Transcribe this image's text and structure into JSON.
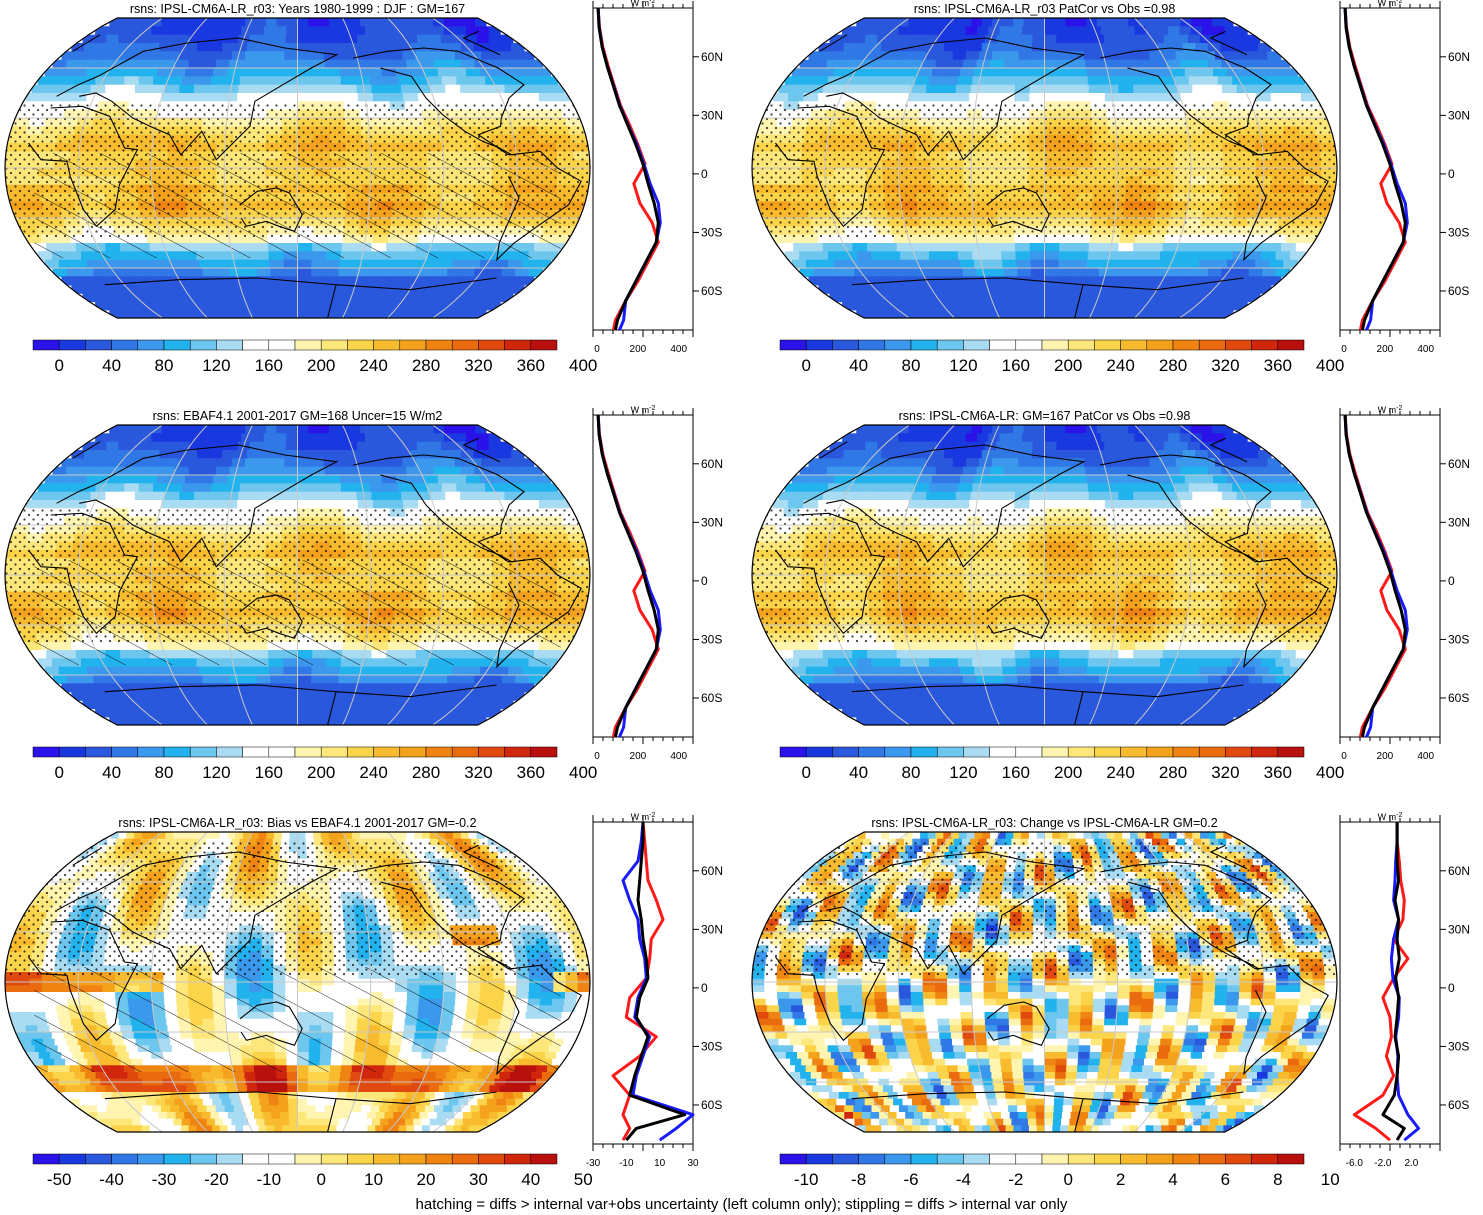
{
  "footer": "hatching = diffs > internal var+obs uncertainty (left column only); stippling = diffs > internal var only",
  "colors": {
    "abs_palette": [
      "#2a12e8",
      "#1a38e0",
      "#2a58dc",
      "#2f78e6",
      "#3b98ec",
      "#22b3ee",
      "#6cc6ee",
      "#a9dcf3",
      "#ffffff",
      "#ffffff",
      "#fff4b0",
      "#fde67a",
      "#fbd44a",
      "#f8bb2e",
      "#f4a21c",
      "#ef8412",
      "#ea6a0e",
      "#e04a0e",
      "#d1260e",
      "#b8100c"
    ],
    "diff_palette": [
      "#2a12e8",
      "#1a38e0",
      "#2a58dc",
      "#2f78e6",
      "#3b98ec",
      "#22b3ee",
      "#6cc6ee",
      "#a9dcf3",
      "#ffffff",
      "#ffffff",
      "#fff4b0",
      "#fde67a",
      "#fbd44a",
      "#f8bb2e",
      "#f4a21c",
      "#ef8412",
      "#ea6a0e",
      "#e04a0e",
      "#d1260e",
      "#b8100c"
    ],
    "land_outline": "#000000",
    "graticule": "#c8c8c8",
    "profile_model": "#000000",
    "profile_obs": "#ff1a1a",
    "profile_other": "#1a1aff"
  },
  "chart_data": [
    {
      "type": "heatmap",
      "panel": "top-left",
      "title": "rsns: IPSL-CM6A-LR_r03: Years 1980-1999 : DJF : GM=167",
      "colorbar": {
        "ticks": [
          "0",
          "40",
          "80",
          "120",
          "160",
          "200",
          "240",
          "280",
          "320",
          "360",
          "400"
        ],
        "range": [
          -20,
          420
        ]
      },
      "field": "abs",
      "stipple": true,
      "hatch": true,
      "profile": {
        "units": "W m",
        "units_sup": "-2",
        "xticks": [
          "0",
          "200",
          "400"
        ],
        "xtick_vals": [
          0,
          200,
          400
        ],
        "xlim": [
          -20,
          470
        ],
        "ylabels": [
          "60N",
          "30N",
          "0",
          "30S",
          "60S"
        ],
        "ylim": [
          -80,
          85
        ],
        "lat": [
          85,
          75,
          65,
          55,
          45,
          35,
          25,
          15,
          5,
          -5,
          -15,
          -25,
          -35,
          -45,
          -55,
          -65,
          -75,
          -80
        ],
        "black": [
          5,
          10,
          25,
          50,
          80,
          110,
          150,
          190,
          225,
          250,
          280,
          300,
          290,
          240,
          190,
          140,
          100,
          90
        ],
        "red": [
          5,
          12,
          28,
          55,
          85,
          115,
          160,
          200,
          235,
          180,
          210,
          270,
          300,
          250,
          200,
          140,
          90,
          80
        ],
        "blue": [
          5,
          10,
          25,
          50,
          82,
          112,
          152,
          195,
          230,
          260,
          300,
          310,
          290,
          240,
          190,
          140,
          130,
          110
        ]
      }
    },
    {
      "type": "heatmap",
      "panel": "top-right",
      "title": "rsns: IPSL-CM6A-LR_r03 PatCor vs Obs =0.98",
      "colorbar": {
        "ticks": [
          "0",
          "40",
          "80",
          "120",
          "160",
          "200",
          "240",
          "280",
          "320",
          "360",
          "400"
        ],
        "range": [
          -20,
          420
        ]
      },
      "field": "abs",
      "stipple": true,
      "hatch": false,
      "profile": {
        "units": "W m",
        "units_sup": "-2",
        "xticks": [
          "0",
          "200",
          "400"
        ],
        "xtick_vals": [
          0,
          200,
          400
        ],
        "xlim": [
          -20,
          470
        ],
        "ylabels": [
          "60N",
          "30N",
          "0",
          "30S",
          "60S"
        ],
        "ylim": [
          -80,
          85
        ],
        "lat": [
          85,
          75,
          65,
          55,
          45,
          35,
          25,
          15,
          5,
          -5,
          -15,
          -25,
          -35,
          -45,
          -55,
          -65,
          -75,
          -80
        ],
        "black": [
          5,
          10,
          25,
          50,
          80,
          110,
          150,
          190,
          225,
          250,
          280,
          300,
          290,
          240,
          190,
          140,
          100,
          90
        ],
        "red": [
          5,
          12,
          28,
          55,
          85,
          115,
          160,
          200,
          235,
          180,
          210,
          270,
          300,
          250,
          200,
          140,
          90,
          80
        ],
        "blue": [
          5,
          10,
          25,
          50,
          82,
          112,
          152,
          195,
          230,
          260,
          300,
          310,
          290,
          240,
          190,
          140,
          130,
          110
        ]
      }
    },
    {
      "type": "heatmap",
      "panel": "middle-left",
      "title": "rsns: EBAF4.1 2001-2017 GM=168 Uncer=15 W/m2",
      "colorbar": {
        "ticks": [
          "0",
          "40",
          "80",
          "120",
          "160",
          "200",
          "240",
          "280",
          "320",
          "360",
          "400"
        ],
        "range": [
          -20,
          420
        ]
      },
      "field": "abs",
      "stipple": true,
      "hatch": true,
      "profile": {
        "units": "W m",
        "units_sup": "-2",
        "xticks": [
          "0",
          "200",
          "400"
        ],
        "xtick_vals": [
          0,
          200,
          400
        ],
        "xlim": [
          -20,
          470
        ],
        "ylabels": [
          "60N",
          "30N",
          "0",
          "30S",
          "60S"
        ],
        "ylim": [
          -80,
          85
        ],
        "lat": [
          85,
          75,
          65,
          55,
          45,
          35,
          25,
          15,
          5,
          -5,
          -15,
          -25,
          -35,
          -45,
          -55,
          -65,
          -75,
          -80
        ],
        "black": [
          5,
          10,
          25,
          50,
          80,
          110,
          150,
          190,
          225,
          250,
          280,
          300,
          290,
          240,
          190,
          140,
          100,
          90
        ],
        "red": [
          5,
          12,
          28,
          55,
          85,
          115,
          160,
          200,
          235,
          180,
          210,
          270,
          300,
          250,
          200,
          140,
          90,
          80
        ],
        "blue": [
          5,
          10,
          25,
          50,
          82,
          112,
          152,
          195,
          230,
          260,
          300,
          310,
          290,
          240,
          190,
          140,
          130,
          110
        ]
      }
    },
    {
      "type": "heatmap",
      "panel": "middle-right",
      "title": "rsns: IPSL-CM6A-LR: GM=167 PatCor vs Obs =0.98",
      "colorbar": {
        "ticks": [
          "0",
          "40",
          "80",
          "120",
          "160",
          "200",
          "240",
          "280",
          "320",
          "360",
          "400"
        ],
        "range": [
          -20,
          420
        ]
      },
      "field": "abs",
      "stipple": true,
      "hatch": false,
      "profile": {
        "units": "W m",
        "units_sup": "-2",
        "xticks": [
          "0",
          "200",
          "400"
        ],
        "xtick_vals": [
          0,
          200,
          400
        ],
        "xlim": [
          -20,
          470
        ],
        "ylabels": [
          "60N",
          "30N",
          "0",
          "30S",
          "60S"
        ],
        "ylim": [
          -80,
          85
        ],
        "lat": [
          85,
          75,
          65,
          55,
          45,
          35,
          25,
          15,
          5,
          -5,
          -15,
          -25,
          -35,
          -45,
          -55,
          -65,
          -75,
          -80
        ],
        "black": [
          5,
          10,
          25,
          50,
          80,
          110,
          150,
          190,
          225,
          250,
          280,
          300,
          290,
          240,
          190,
          140,
          100,
          90
        ],
        "red": [
          5,
          12,
          28,
          55,
          85,
          115,
          160,
          200,
          235,
          180,
          210,
          270,
          300,
          250,
          200,
          140,
          90,
          80
        ],
        "blue": [
          5,
          10,
          25,
          50,
          82,
          112,
          152,
          195,
          230,
          260,
          300,
          310,
          290,
          240,
          190,
          140,
          130,
          110
        ]
      }
    },
    {
      "type": "heatmap",
      "panel": "bottom-left",
      "title": "rsns: IPSL-CM6A-LR_r03: Bias vs EBAF4.1 2001-2017 GM=-0.2",
      "colorbar": {
        "ticks": [
          "-50",
          "-40",
          "-30",
          "-20",
          "-10",
          "0",
          "10",
          "20",
          "30",
          "40",
          "50"
        ],
        "range": [
          -55,
          55
        ]
      },
      "field": "diff",
      "stipple": true,
      "hatch": true,
      "profile": {
        "units": "W m",
        "units_sup": "-2",
        "xticks": [
          "-30",
          "-10",
          "10",
          "30"
        ],
        "xtick_vals": [
          -30,
          -10,
          10,
          30
        ],
        "xlim": [
          -30,
          30
        ],
        "ylabels": [
          "60N",
          "30N",
          "0",
          "30S",
          "60S"
        ],
        "ylim": [
          -80,
          85
        ],
        "lat": [
          85,
          75,
          65,
          55,
          45,
          35,
          25,
          15,
          5,
          -5,
          -15,
          -25,
          -35,
          -45,
          -55,
          -65,
          -72,
          -78
        ],
        "black": [
          0,
          0,
          -1,
          -2,
          -3,
          -1,
          0,
          2,
          3,
          -2,
          -4,
          3,
          -1,
          -5,
          -8,
          25,
          -4,
          -10
        ],
        "red": [
          0,
          1,
          2,
          3,
          8,
          12,
          5,
          4,
          2,
          -8,
          -10,
          8,
          -2,
          -18,
          -8,
          -12,
          -8,
          -12
        ],
        "blue": [
          0,
          -1,
          -3,
          -12,
          -8,
          -3,
          -2,
          1,
          2,
          -3,
          -5,
          4,
          0,
          -4,
          -6,
          30,
          20,
          10
        ]
      }
    },
    {
      "type": "heatmap",
      "panel": "bottom-right",
      "title": "rsns: IPSL-CM6A-LR_r03: Change vs IPSL-CM6A-LR GM=0.2",
      "colorbar": {
        "ticks": [
          "-10",
          "-8",
          "-6",
          "-4",
          "-2",
          "0",
          "2",
          "4",
          "6",
          "8",
          "10"
        ],
        "range": [
          -11,
          11
        ]
      },
      "field": "diff",
      "stipple": true,
      "hatch": false,
      "profile": {
        "units": "W m",
        "units_sup": "-2",
        "xticks": [
          "-6.0",
          "-2.0",
          "2.0"
        ],
        "xtick_vals": [
          -6,
          -2,
          2
        ],
        "xlim": [
          -8,
          6
        ],
        "ylabels": [
          "60N",
          "30N",
          "0",
          "30S",
          "60S"
        ],
        "ylim": [
          -80,
          85
        ],
        "lat": [
          85,
          75,
          65,
          55,
          45,
          35,
          25,
          15,
          5,
          -5,
          -15,
          -25,
          -35,
          -45,
          -55,
          -65,
          -72,
          -78
        ],
        "black": [
          0,
          0,
          0,
          0.2,
          -0.3,
          0.2,
          0,
          0.3,
          -0.2,
          0.2,
          0,
          -0.3,
          0.2,
          0,
          -0.4,
          -2,
          1,
          0
        ],
        "red": [
          0,
          0,
          0.3,
          0.5,
          1,
          0.8,
          -0.5,
          1.5,
          -0.5,
          -2,
          -1,
          -0.8,
          -1.5,
          -0.5,
          -2,
          -6,
          -3,
          -1
        ],
        "blue": [
          0,
          0,
          -0.2,
          -0.3,
          -0.5,
          0.2,
          -0.5,
          -0.8,
          -0.6,
          0.3,
          0.2,
          -0.2,
          0.1,
          0,
          0.2,
          1.5,
          3,
          1
        ]
      }
    }
  ]
}
